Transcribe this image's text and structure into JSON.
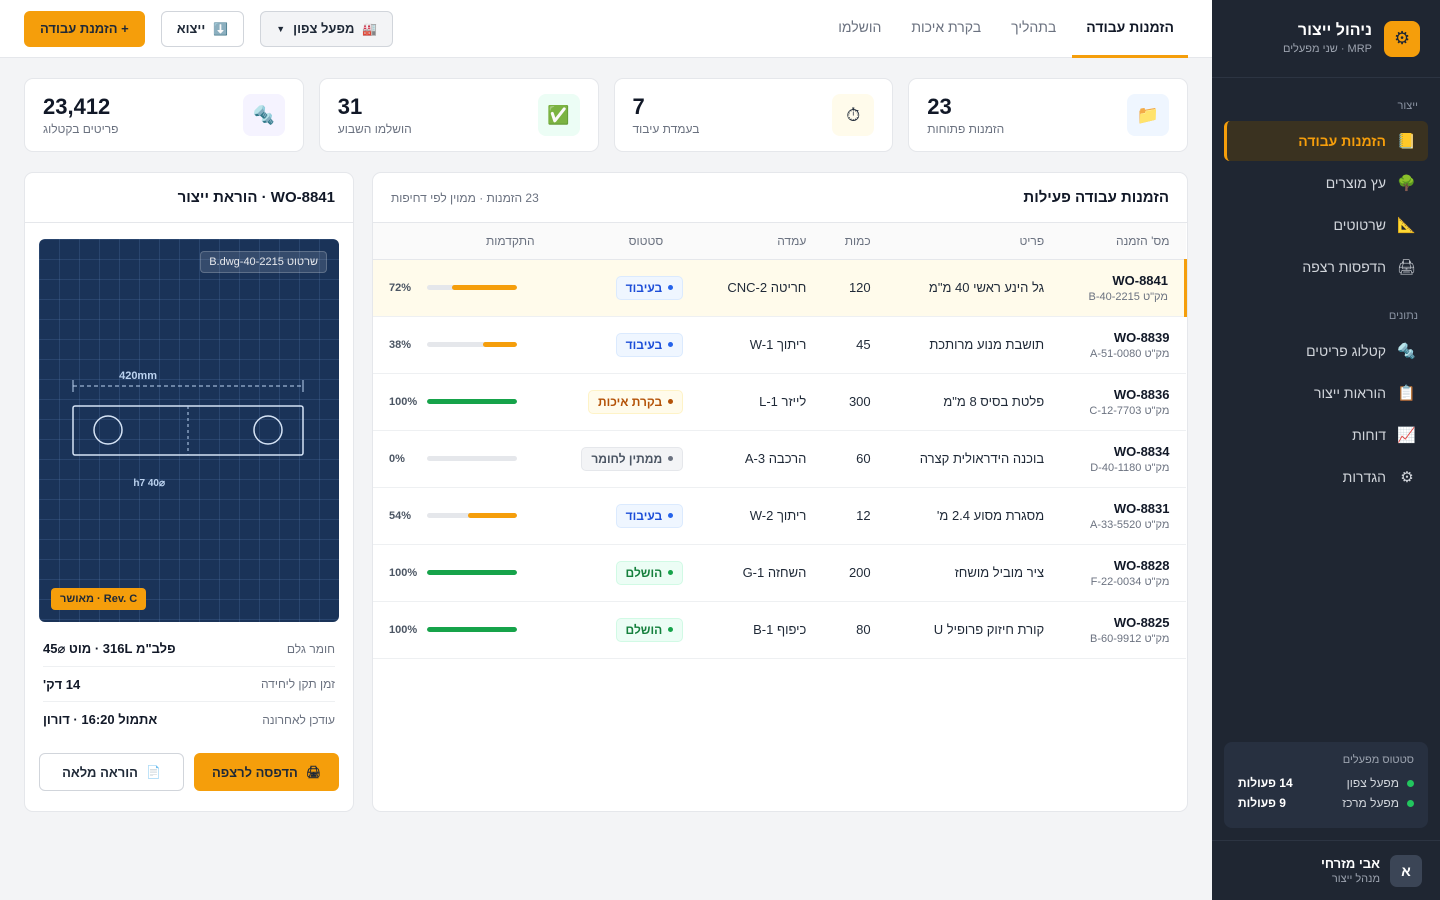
{
  "brand": {
    "title": "ניהול ייצור",
    "subtitle": "MRP · שני מפעלים",
    "logo_icon": "gear-icon"
  },
  "sidebar": {
    "sections": [
      {
        "label": "ייצור"
      },
      {
        "label": "נתונים"
      }
    ],
    "items": [
      {
        "label": "הזמנות עבודה",
        "icon": "📒",
        "icon_name": "folder-icon"
      },
      {
        "label": "עץ מוצרים",
        "icon": "🌳",
        "icon_name": "tree-icon"
      },
      {
        "label": "שרטוטים",
        "icon": "📐",
        "icon_name": "ruler-icon"
      },
      {
        "label": "הדפסות רצפה",
        "icon": "🖨",
        "icon_name": "printer-icon"
      },
      {
        "label": "קטלוג פריטים",
        "icon": "🔩",
        "icon_name": "bolt-icon"
      },
      {
        "label": "הוראות ייצור",
        "icon": "📋",
        "icon_name": "clipboard-icon"
      },
      {
        "label": "דוחות",
        "icon": "📈",
        "icon_name": "chart-icon"
      },
      {
        "label": "הגדרות",
        "icon": "⚙",
        "icon_name": "gear-icon"
      }
    ],
    "plant_status": {
      "title": "סטטוס מפעלים",
      "plants": [
        {
          "name": "מפעל צפון",
          "count": "14 פעולות"
        },
        {
          "name": "מפעל מרכז",
          "count": "9 פעולות"
        }
      ]
    },
    "user": {
      "initial": "א",
      "name": "אבי מזרחי",
      "role": "מנהל ייצור"
    }
  },
  "topbar": {
    "tabs": [
      {
        "label": "הזמנות עבודה"
      },
      {
        "label": "בתהליך"
      },
      {
        "label": "בקרת איכות"
      },
      {
        "label": "הושלמו"
      }
    ],
    "plant_select": {
      "icon": "🏭",
      "value": "מפעל צפון"
    },
    "export_button": {
      "icon": "⬇️",
      "label": "ייצוא"
    },
    "new_order_button": {
      "label": "+ הזמנת עבודה"
    }
  },
  "stats": [
    {
      "value": "23",
      "label": "הזמנות פתוחות",
      "icon": "📁",
      "icon_name": "folder-icon",
      "bg": "#eff6ff"
    },
    {
      "value": "7",
      "label": "בעמדת עיבוד",
      "icon": "⏱",
      "icon_name": "stopwatch-icon",
      "bg": "#fffbeb"
    },
    {
      "value": "31",
      "label": "הושלמו השבוע",
      "icon": "✅",
      "icon_name": "check-icon",
      "bg": "#ecfdf5"
    },
    {
      "value": "23,412",
      "label": "פריטים בקטלוג",
      "icon": "🔩",
      "icon_name": "bolt-icon",
      "bg": "#f5f3ff"
    }
  ],
  "orders": {
    "title": "הזמנות עבודה פעילות",
    "subtitle": "23 הזמנות · ממוין לפי דחיפות",
    "columns": [
      "מס' הזמנה",
      "פריט",
      "כמות",
      "עמדה",
      "סטטוס",
      "התקדמות"
    ],
    "rows": [
      {
        "id": "WO-8841",
        "sku": "מק\"ט B-40-2215",
        "item": "גל הינע ראשי 40 מ\"מ",
        "qty": "120",
        "station": "חריטה CNC-2",
        "status": "בעיבוד",
        "status_type": "blue",
        "progress": 72,
        "progress_label": "72%",
        "progress_color": "#f59e0b"
      },
      {
        "id": "WO-8839",
        "sku": "מק\"ט A-51-0080",
        "item": "תושבת מנוע מרותכת",
        "qty": "45",
        "station": "ריתוך W-1",
        "status": "בעיבוד",
        "status_type": "blue",
        "progress": 38,
        "progress_label": "38%",
        "progress_color": "#f59e0b"
      },
      {
        "id": "WO-8836",
        "sku": "מק\"ט C-12-7703",
        "item": "פלטת בסיס 8 מ\"מ",
        "qty": "300",
        "station": "לייזר L-1",
        "status": "בקרת איכות",
        "status_type": "yellow",
        "progress": 100,
        "progress_label": "100%",
        "progress_color": "#16a34a"
      },
      {
        "id": "WO-8834",
        "sku": "מק\"ט D-40-1180",
        "item": "בוכנה הידראולית קצרה",
        "qty": "60",
        "station": "הרכבה A-3",
        "status": "ממתין לחומר",
        "status_type": "gray",
        "progress": 0,
        "progress_label": "0%",
        "progress_color": "#9ca3af"
      },
      {
        "id": "WO-8831",
        "sku": "מק\"ט A-33-5520",
        "item": "מסגרת מסוע 2.4 מ'",
        "qty": "12",
        "station": "ריתוך W-2",
        "status": "בעיבוד",
        "status_type": "blue",
        "progress": 54,
        "progress_label": "54%",
        "progress_color": "#f59e0b"
      },
      {
        "id": "WO-8828",
        "sku": "מק\"ט F-22-0034",
        "item": "ציר מוביל מושחז",
        "qty": "200",
        "station": "השחזה G-1",
        "status": "הושלם",
        "status_type": "green",
        "progress": 100,
        "progress_label": "100%",
        "progress_color": "#16a34a"
      },
      {
        "id": "WO-8825",
        "sku": "מק\"ט B-60-9912",
        "item": "קורת חיזוק פרופיל U",
        "qty": "80",
        "station": "כיפוף B-1",
        "status": "הושלם",
        "status_type": "green",
        "progress": 100,
        "progress_label": "100%",
        "progress_color": "#16a34a"
      }
    ]
  },
  "detail": {
    "title": "WO-8841 · הוראת ייצור",
    "drawing": {
      "tag": "שרטוט B.dwg-40-2215",
      "dim_length": "420mm",
      "dim_diameter": "⌀40 h7",
      "revision": "Rev. C · מאושר"
    },
    "specs": [
      {
        "key": "חומר גלם",
        "value": "פלב\"מ 316L · מוט ⌀45"
      },
      {
        "key": "זמן תקן ליחידה",
        "value": "14 דק'"
      },
      {
        "key": "עודכן לאחרונה",
        "value": "אתמול 16:20 · דורון"
      }
    ],
    "print_button": {
      "icon": "🖨",
      "label": "הדפסה לרצפה"
    },
    "full_button": {
      "icon": "📄",
      "label": "הוראה מלאה"
    }
  }
}
